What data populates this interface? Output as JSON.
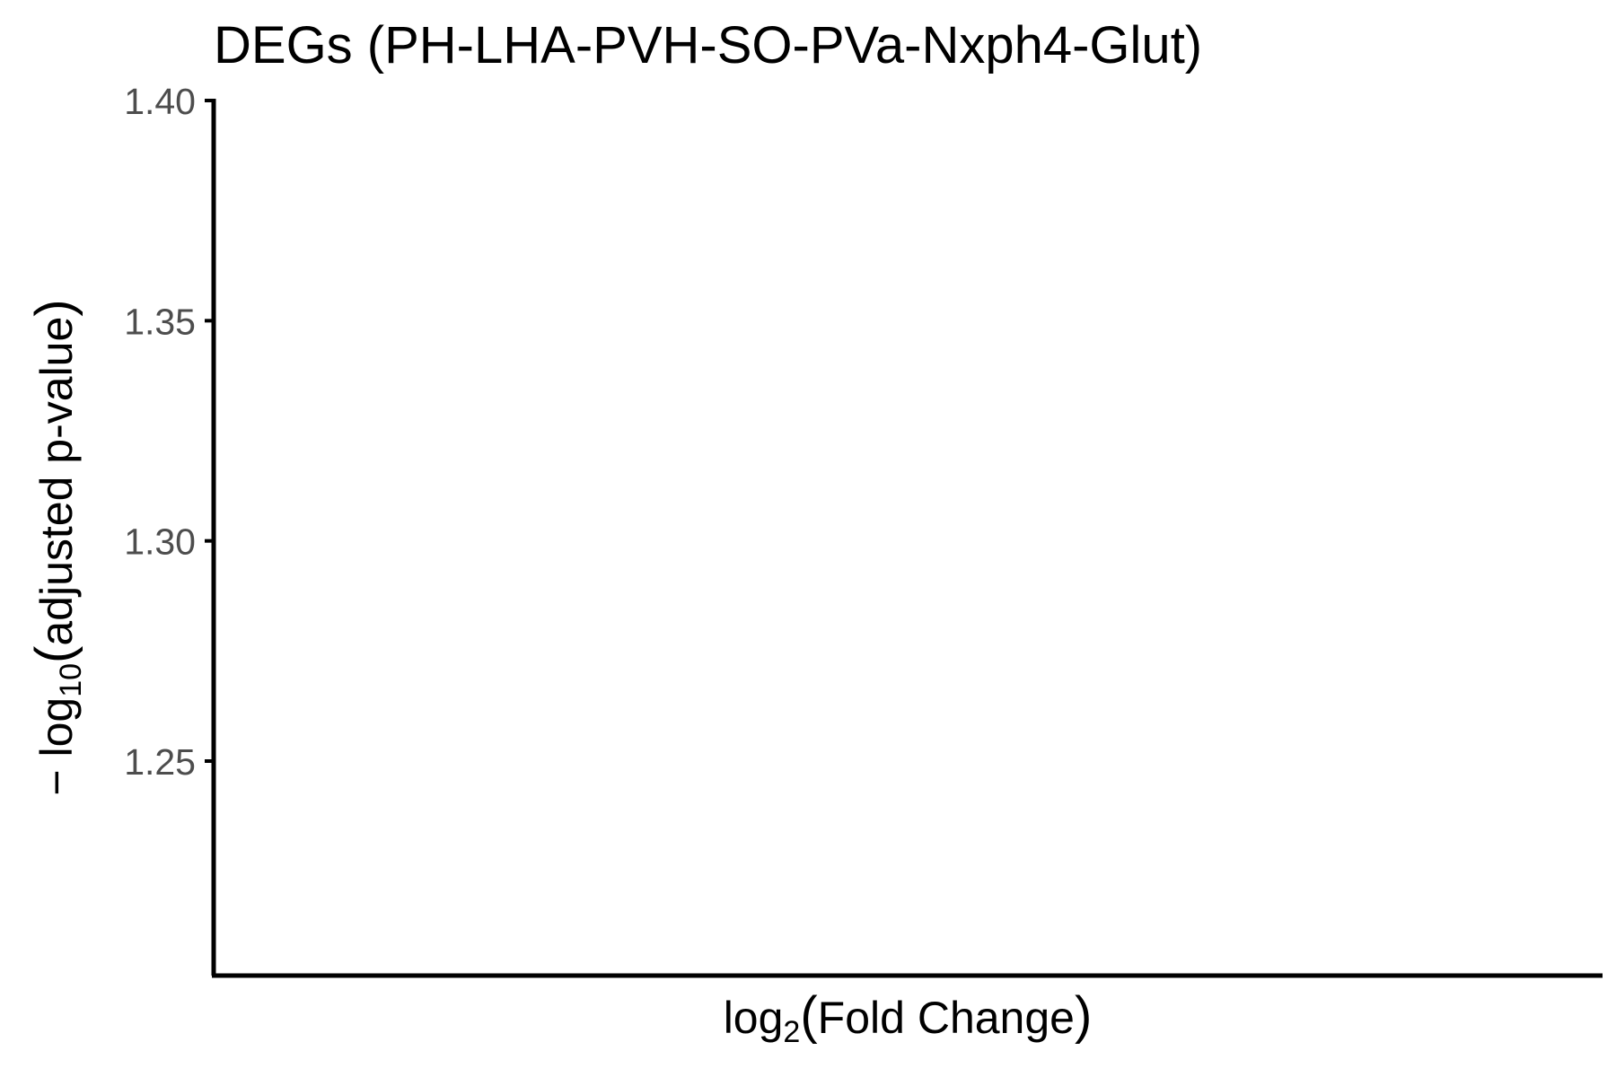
{
  "chart_data": {
    "type": "scatter",
    "title": "DEGs (PH-LHA-PVH-SO-PVa-Nxph4-Glut)",
    "xlabel": {
      "prefix": "log",
      "subscript": "2",
      "paren_open": "(",
      "text": "Fold Change",
      "paren_close": ")"
    },
    "ylabel": {
      "prefix": "− log",
      "subscript": "10",
      "paren_open": "(",
      "text": "adjusted p-value",
      "paren_close": ")"
    },
    "y_ticks": [
      1.25,
      1.3,
      1.35,
      1.4
    ],
    "y_tick_labels": [
      "1.25",
      "1.30",
      "1.35",
      "1.40"
    ],
    "ylim": [
      1.2,
      1.4
    ],
    "x_ticks": [],
    "points": [],
    "grid": false,
    "legend": "none",
    "colors": {
      "axis": "#000000",
      "tick_label": "#4d4d4d"
    }
  }
}
